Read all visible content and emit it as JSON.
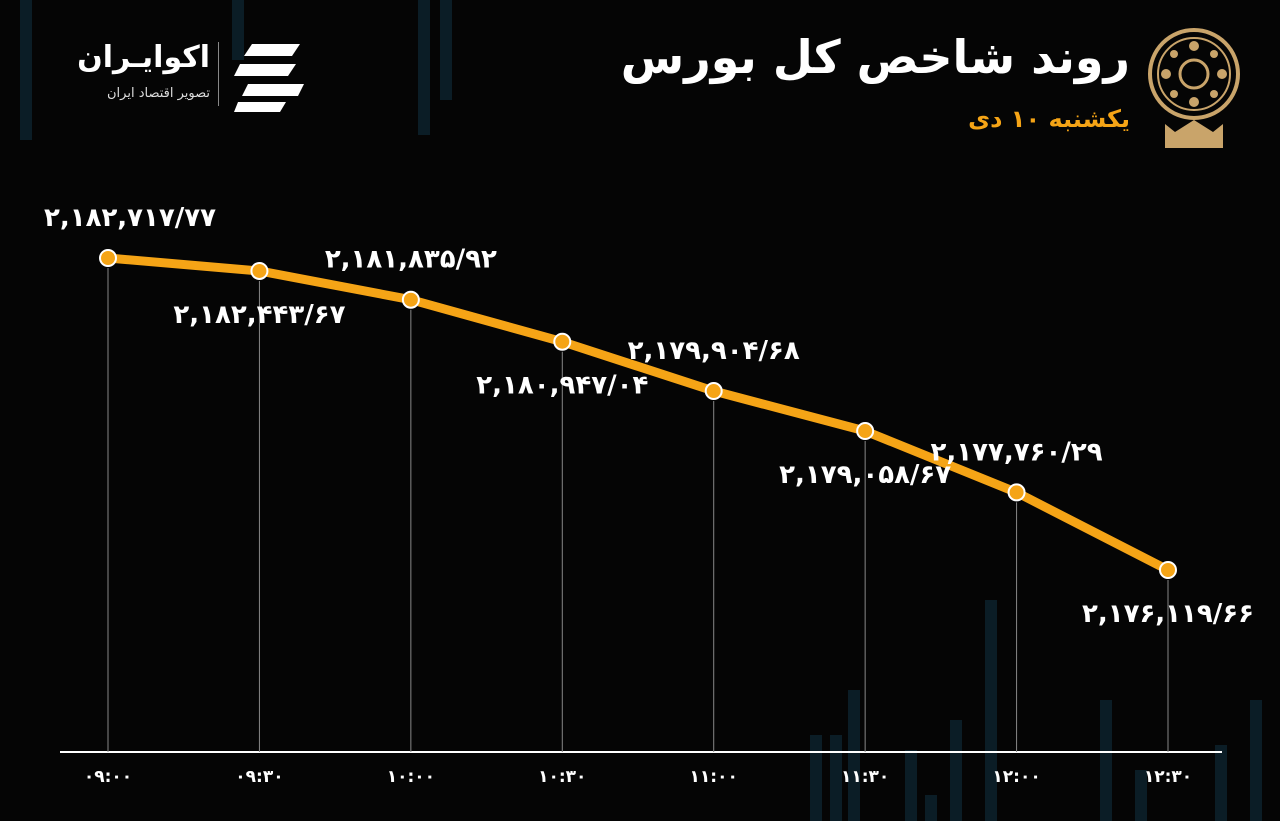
{
  "header": {
    "title": "روند شاخص کل بورس",
    "subtitle": "یکشنبه ۱۰ دی"
  },
  "logo": {
    "name": "اکوایـران",
    "tagline": "تصویر اقتصاد ایران"
  },
  "colors": {
    "line": "#f5a416",
    "background": "#050505",
    "accent": "#f5a416"
  },
  "chart_data": {
    "type": "line",
    "title": "روند شاخص کل بورس",
    "subtitle": "یکشنبه ۱۰ دی",
    "categories": [
      "۰۹:۰۰",
      "۰۹:۳۰",
      "۱۰:۰۰",
      "۱۰:۳۰",
      "۱۱:۰۰",
      "۱۱:۳۰",
      "۱۲:۰۰",
      "۱۲:۳۰"
    ],
    "values": [
      2182717.77,
      2182443.67,
      2181835.92,
      2180947.04,
      2179904.68,
      2179058.67,
      2177760.29,
      2176119.66
    ],
    "labels": [
      "۲,۱۸۲,۷۱۷/۷۷",
      "۲,۱۸۲,۴۴۳/۶۷",
      "۲,۱۸۱,۸۳۵/۹۲",
      "۲,۱۸۰,۹۴۷/۰۴",
      "۲,۱۷۹,۹۰۴/۶۸",
      "۲,۱۷۹,۰۵۸/۶۷",
      "۲,۱۷۷,۷۶۰/۲۹",
      "۲,۱۷۶,۱۱۹/۶۶"
    ],
    "xlabel": "",
    "ylabel": "",
    "grid": false,
    "legend": "none"
  }
}
